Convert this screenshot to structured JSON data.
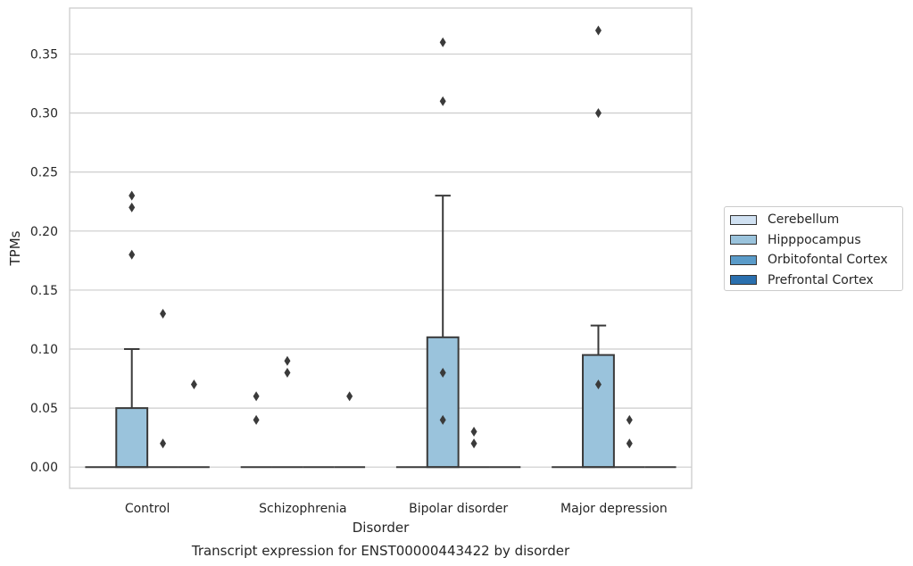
{
  "chart_data": {
    "type": "box",
    "title": "",
    "caption": "Transcript expression for ENST00000443422 by disorder",
    "xlabel": "Disorder",
    "ylabel": "TPMs",
    "ylim": [
      -0.018,
      0.389
    ],
    "yticks": [
      "0.00",
      "0.05",
      "0.10",
      "0.15",
      "0.20",
      "0.25",
      "0.30",
      "0.35"
    ],
    "ytick_values": [
      0,
      0.05,
      0.1,
      0.15,
      0.2,
      0.25,
      0.3,
      0.35
    ],
    "grid": "horizontal",
    "legend_position": "right",
    "categories": [
      "Control",
      "Schizophrenia",
      "Bipolar disorder",
      "Major depression"
    ],
    "series": [
      {
        "name": "Cerebellum",
        "color": "#d0e1f2",
        "boxes": [
          {
            "q1": 0,
            "median": 0,
            "q3": 0,
            "whisker_low": 0,
            "whisker_high": 0,
            "outliers": []
          },
          {
            "q1": 0,
            "median": 0,
            "q3": 0,
            "whisker_low": 0,
            "whisker_high": 0,
            "outliers": [
              0.04,
              0.06
            ]
          },
          {
            "q1": 0,
            "median": 0,
            "q3": 0,
            "whisker_low": 0,
            "whisker_high": 0,
            "outliers": []
          },
          {
            "q1": 0,
            "median": 0,
            "q3": 0,
            "whisker_low": 0,
            "whisker_high": 0,
            "outliers": []
          }
        ]
      },
      {
        "name": "Hipppocampus",
        "color": "#9ac3dc",
        "boxes": [
          {
            "q1": 0,
            "median": 0,
            "q3": 0.05,
            "whisker_low": 0,
            "whisker_high": 0.1,
            "outliers": [
              0.18,
              0.22,
              0.23
            ]
          },
          {
            "q1": 0,
            "median": 0,
            "q3": 0,
            "whisker_low": 0,
            "whisker_high": 0,
            "outliers": [
              0.08,
              0.09
            ]
          },
          {
            "q1": 0,
            "median": 0,
            "q3": 0.11,
            "whisker_low": 0,
            "whisker_high": 0.23,
            "outliers": [
              0.04,
              0.08,
              0.31,
              0.36
            ]
          },
          {
            "q1": 0,
            "median": 0,
            "q3": 0.095,
            "whisker_low": 0,
            "whisker_high": 0.12,
            "outliers": [
              0.07,
              0.3,
              0.37
            ]
          }
        ]
      },
      {
        "name": "Orbitofontal Cortex",
        "color": "#5a9bc9",
        "boxes": [
          {
            "q1": 0,
            "median": 0,
            "q3": 0,
            "whisker_low": 0,
            "whisker_high": 0,
            "outliers": [
              0.02,
              0.13
            ]
          },
          {
            "q1": 0,
            "median": 0,
            "q3": 0,
            "whisker_low": 0,
            "whisker_high": 0,
            "outliers": []
          },
          {
            "q1": 0,
            "median": 0,
            "q3": 0,
            "whisker_low": 0,
            "whisker_high": 0,
            "outliers": [
              0.02,
              0.03
            ]
          },
          {
            "q1": 0,
            "median": 0,
            "q3": 0,
            "whisker_low": 0,
            "whisker_high": 0,
            "outliers": [
              0.02,
              0.04
            ]
          }
        ]
      },
      {
        "name": "Prefrontal Cortex",
        "color": "#2a6fae",
        "boxes": [
          {
            "q1": 0,
            "median": 0,
            "q3": 0,
            "whisker_low": 0,
            "whisker_high": 0,
            "outliers": [
              0.07
            ]
          },
          {
            "q1": 0,
            "median": 0,
            "q3": 0,
            "whisker_low": 0,
            "whisker_high": 0,
            "outliers": [
              0.06
            ]
          },
          {
            "q1": 0,
            "median": 0,
            "q3": 0,
            "whisker_low": 0,
            "whisker_high": 0,
            "outliers": []
          },
          {
            "q1": 0,
            "median": 0,
            "q3": 0,
            "whisker_low": 0,
            "whisker_high": 0,
            "outliers": []
          }
        ]
      }
    ]
  }
}
